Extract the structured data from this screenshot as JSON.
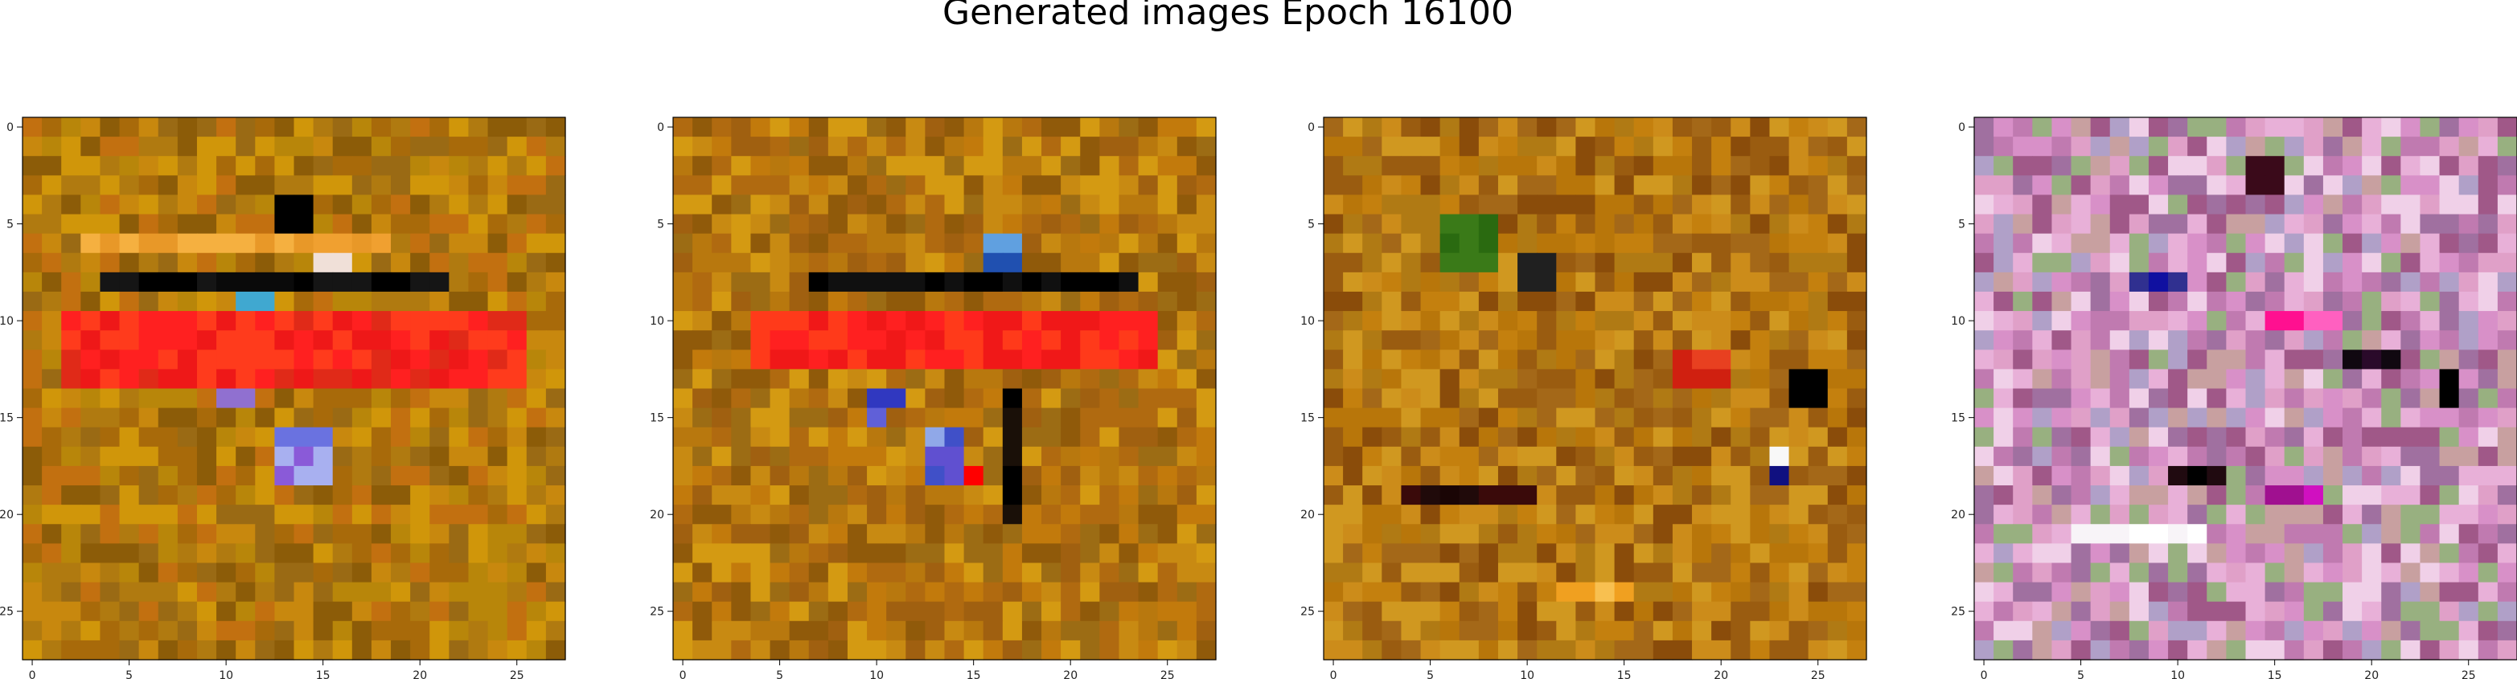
{
  "chart_data": {
    "type": "heatmap",
    "title": "Generated images Epoch 16100",
    "grid": false,
    "image_size": 28,
    "x_range": [
      -0.5,
      27.5
    ],
    "y_range": [
      27.5,
      -0.5
    ],
    "x_ticks": [
      0,
      5,
      10,
      15,
      20,
      25
    ],
    "y_ticks": [
      0,
      5,
      10,
      15,
      20,
      25
    ],
    "x_tick_labels": [
      "0",
      "5",
      "10",
      "15",
      "20",
      "25"
    ],
    "y_tick_labels": [
      "0",
      "5",
      "10",
      "15",
      "20",
      "25"
    ],
    "panels": [
      {
        "palette": [
          "#b07a10",
          "#c8880e",
          "#a86a0a",
          "#d0960a",
          "#9a6a14",
          "#b8860a",
          "#c27010",
          "#8c5c08"
        ],
        "features": [
          {
            "rows": [
              10,
              13
            ],
            "cols": [
              2,
              25
            ],
            "colors": [
              "#ff2020",
              "#ee1818",
              "#ff3b1c",
              "#e02a18"
            ]
          },
          {
            "rows": [
              8,
              8
            ],
            "cols": [
              4,
              21
            ],
            "colors": [
              "#000000",
              "#151515",
              "#0a0a0a"
            ]
          },
          {
            "rows": [
              6,
              6
            ],
            "cols": [
              3,
              18
            ],
            "colors": [
              "#f0a030",
              "#e89828",
              "#f5b040"
            ]
          },
          {
            "rows": [
              4,
              5
            ],
            "cols": [
              13,
              14
            ],
            "colors": [
              "#000000"
            ]
          },
          {
            "rows": [
              14,
              14
            ],
            "cols": [
              10,
              11
            ],
            "colors": [
              "#5050d0",
              "#9070d0"
            ]
          },
          {
            "rows": [
              16,
              18
            ],
            "cols": [
              13,
              15
            ],
            "colors": [
              "#8a5ad8",
              "#6a72e0",
              "#a8b0f0"
            ]
          },
          {
            "rows": [
              7,
              7
            ],
            "cols": [
              15,
              16
            ],
            "colors": [
              "#3030c0",
              "#f0e0d8"
            ]
          },
          {
            "rows": [
              9,
              9
            ],
            "cols": [
              11,
              12
            ],
            "colors": [
              "#30c0c0",
              "#40a8d0"
            ]
          }
        ]
      },
      {
        "palette": [
          "#b8780e",
          "#c88a12",
          "#a06010",
          "#d49a12",
          "#905a0a",
          "#c27a0c",
          "#b06a10",
          "#9c6c14"
        ],
        "features": [
          {
            "rows": [
              10,
              12
            ],
            "cols": [
              4,
              24
            ],
            "colors": [
              "#ff2020",
              "#f01818",
              "#ff3a1a"
            ]
          },
          {
            "rows": [
              8,
              8
            ],
            "cols": [
              7,
              23
            ],
            "colors": [
              "#000000",
              "#101010"
            ]
          },
          {
            "rows": [
              14,
              14
            ],
            "cols": [
              10,
              11
            ],
            "colors": [
              "#102080",
              "#3038c0"
            ]
          },
          {
            "rows": [
              15,
              15
            ],
            "cols": [
              10,
              10
            ],
            "colors": [
              "#6060d8"
            ]
          },
          {
            "rows": [
              16,
              18
            ],
            "cols": [
              13,
              14
            ],
            "colors": [
              "#6050d0",
              "#90a8e8",
              "#4050c8"
            ]
          },
          {
            "rows": [
              14,
              20
            ],
            "cols": [
              17,
              17
            ],
            "colors": [
              "#000000",
              "#1a1008"
            ]
          },
          {
            "rows": [
              18,
              18
            ],
            "cols": [
              15,
              15
            ],
            "colors": [
              "#ff0000"
            ]
          },
          {
            "rows": [
              6,
              7
            ],
            "cols": [
              16,
              17
            ],
            "colors": [
              "#2050b0",
              "#60a0e0"
            ]
          }
        ]
      },
      {
        "palette": [
          "#b07a14",
          "#c4800e",
          "#9a5c10",
          "#cc8c1a",
          "#8a4c0a",
          "#b8760a",
          "#d09820",
          "#a46818"
        ],
        "features": [
          {
            "rows": [
              5,
              7
            ],
            "cols": [
              6,
              8
            ],
            "colors": [
              "#2a6a10",
              "#3a7a18"
            ]
          },
          {
            "rows": [
              7,
              8
            ],
            "cols": [
              10,
              11
            ],
            "colors": [
              "#102060",
              "#d050b0",
              "#202020"
            ]
          },
          {
            "rows": [
              19,
              19
            ],
            "cols": [
              4,
              10
            ],
            "colors": [
              "#200a0a",
              "#3a0a0a",
              "#1a0505"
            ]
          },
          {
            "rows": [
              13,
              14
            ],
            "cols": [
              24,
              25
            ],
            "colors": [
              "#0a2020",
              "#000000"
            ]
          },
          {
            "rows": [
              17,
              17
            ],
            "cols": [
              23,
              23
            ],
            "colors": [
              "#f8f8f8"
            ]
          },
          {
            "rows": [
              18,
              18
            ],
            "cols": [
              23,
              23
            ],
            "colors": [
              "#101080"
            ]
          },
          {
            "rows": [
              24,
              24
            ],
            "cols": [
              12,
              15
            ],
            "colors": [
              "#f0a020",
              "#e89018",
              "#f8c050"
            ]
          },
          {
            "rows": [
              12,
              13
            ],
            "cols": [
              18,
              20
            ],
            "colors": [
              "#d02010",
              "#e84020"
            ]
          }
        ]
      },
      {
        "palette": [
          "#e8b0d8",
          "#d890c8",
          "#c07ab0",
          "#a05888",
          "#f0d0e8",
          "#b0a0c8",
          "#98b080",
          "#c8a0a0",
          "#e0a0c8",
          "#a070a0"
        ],
        "features": [
          {
            "rows": [
              2,
              3
            ],
            "cols": [
              14,
              15
            ],
            "colors": [
              "#3a0a1a"
            ]
          },
          {
            "rows": [
              10,
              10
            ],
            "cols": [
              15,
              18
            ],
            "colors": [
              "#ff60c0",
              "#ff1090",
              "#ff80a0"
            ]
          },
          {
            "rows": [
              12,
              12
            ],
            "cols": [
              19,
              21
            ],
            "colors": [
              "#2a0a2a",
              "#100810"
            ]
          },
          {
            "rows": [
              13,
              14
            ],
            "cols": [
              24,
              24
            ],
            "colors": [
              "#000000"
            ]
          },
          {
            "rows": [
              8,
              8
            ],
            "cols": [
              8,
              10
            ],
            "colors": [
              "#303090",
              "#1010a0"
            ]
          },
          {
            "rows": [
              21,
              21
            ],
            "cols": [
              5,
              11
            ],
            "colors": [
              "#f8f4f8",
              "#ffffff"
            ]
          },
          {
            "rows": [
              18,
              18
            ],
            "cols": [
              10,
              12
            ],
            "colors": [
              "#200a10",
              "#000000"
            ]
          },
          {
            "rows": [
              19,
              19
            ],
            "cols": [
              15,
              17
            ],
            "colors": [
              "#d010c0",
              "#a01090"
            ]
          }
        ]
      }
    ]
  }
}
